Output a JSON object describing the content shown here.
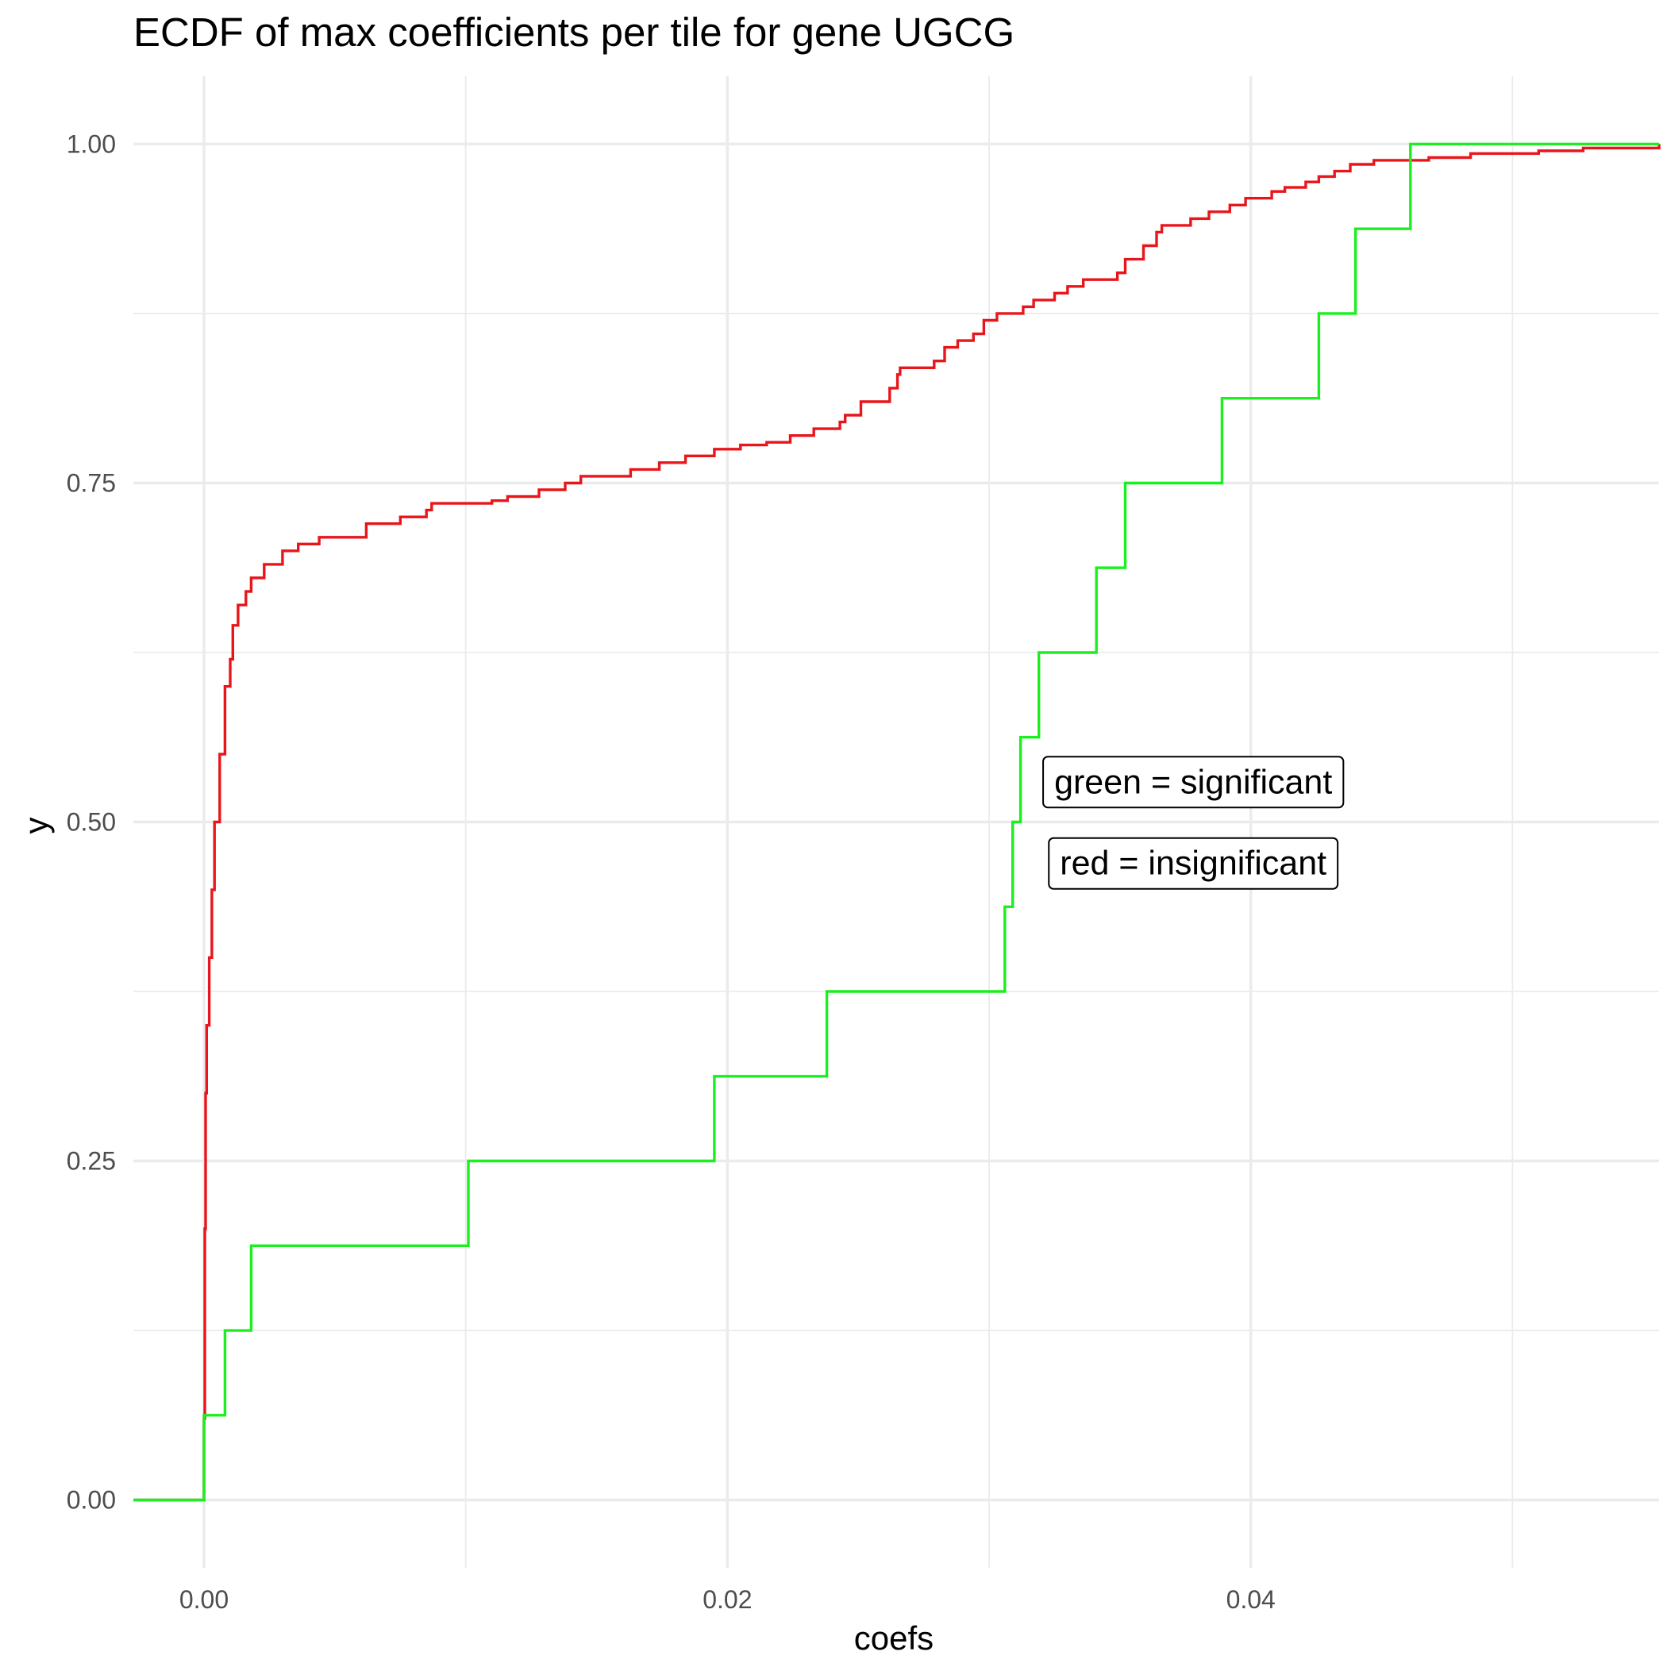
{
  "chart_data": {
    "type": "line",
    "title": "ECDF of max coefficients per tile for gene UGCG",
    "xlabel": "coefs",
    "ylabel": "y",
    "xlim": [
      -0.0027,
      0.0556
    ],
    "ylim": [
      -0.05,
      1.05
    ],
    "x_ticks": [
      {
        "value": 0.0,
        "label": "0.00"
      },
      {
        "value": 0.02,
        "label": "0.02"
      },
      {
        "value": 0.04,
        "label": "0.04"
      }
    ],
    "y_ticks": [
      {
        "value": 0.0,
        "label": "0.00"
      },
      {
        "value": 0.25,
        "label": "0.25"
      },
      {
        "value": 0.5,
        "label": "0.50"
      },
      {
        "value": 0.75,
        "label": "0.75"
      },
      {
        "value": 1.0,
        "label": "1.00"
      }
    ],
    "grid": true,
    "series": [
      {
        "key": "red",
        "color": "#e8161b",
        "step": true,
        "points": [
          [
            -0.0027,
            0.0
          ],
          [
            0.0,
            0.0
          ],
          [
            0.0,
            0.06
          ],
          [
            3e-05,
            0.2
          ],
          [
            6e-05,
            0.3
          ],
          [
            0.0001,
            0.35
          ],
          [
            0.0002,
            0.4
          ],
          [
            0.0003,
            0.45
          ],
          [
            0.0004,
            0.5
          ],
          [
            0.0006,
            0.55
          ],
          [
            0.0008,
            0.6
          ],
          [
            0.001,
            0.62
          ],
          [
            0.0011,
            0.645
          ],
          [
            0.0013,
            0.66
          ],
          [
            0.0016,
            0.67
          ],
          [
            0.0018,
            0.68
          ],
          [
            0.0023,
            0.69
          ],
          [
            0.003,
            0.7
          ],
          [
            0.0036,
            0.705
          ],
          [
            0.0044,
            0.71
          ],
          [
            0.0062,
            0.72
          ],
          [
            0.0075,
            0.725
          ],
          [
            0.0085,
            0.73
          ],
          [
            0.0087,
            0.735
          ],
          [
            0.011,
            0.737
          ],
          [
            0.0116,
            0.74
          ],
          [
            0.0128,
            0.745
          ],
          [
            0.0138,
            0.75
          ],
          [
            0.0144,
            0.755
          ],
          [
            0.0163,
            0.76
          ],
          [
            0.0174,
            0.765
          ],
          [
            0.0184,
            0.77
          ],
          [
            0.0195,
            0.775
          ],
          [
            0.0205,
            0.778
          ],
          [
            0.0215,
            0.78
          ],
          [
            0.0224,
            0.785
          ],
          [
            0.0233,
            0.79
          ],
          [
            0.0243,
            0.795
          ],
          [
            0.0245,
            0.8
          ],
          [
            0.0251,
            0.81
          ],
          [
            0.0262,
            0.82
          ],
          [
            0.0265,
            0.83
          ],
          [
            0.0266,
            0.835
          ],
          [
            0.0279,
            0.84
          ],
          [
            0.0283,
            0.85
          ],
          [
            0.0288,
            0.855
          ],
          [
            0.0294,
            0.86
          ],
          [
            0.0298,
            0.87
          ],
          [
            0.0303,
            0.875
          ],
          [
            0.0313,
            0.88
          ],
          [
            0.0317,
            0.885
          ],
          [
            0.0325,
            0.89
          ],
          [
            0.033,
            0.895
          ],
          [
            0.0336,
            0.9
          ],
          [
            0.0349,
            0.905
          ],
          [
            0.0352,
            0.915
          ],
          [
            0.0359,
            0.925
          ],
          [
            0.0364,
            0.935
          ],
          [
            0.0366,
            0.94
          ],
          [
            0.0377,
            0.945
          ],
          [
            0.0384,
            0.95
          ],
          [
            0.0392,
            0.955
          ],
          [
            0.0398,
            0.96
          ],
          [
            0.0408,
            0.965
          ],
          [
            0.0413,
            0.968
          ],
          [
            0.0421,
            0.972
          ],
          [
            0.0426,
            0.976
          ],
          [
            0.0432,
            0.98
          ],
          [
            0.0438,
            0.985
          ],
          [
            0.0447,
            0.988
          ],
          [
            0.0468,
            0.99
          ],
          [
            0.0484,
            0.993
          ],
          [
            0.051,
            0.995
          ],
          [
            0.0527,
            0.997
          ],
          [
            0.0556,
            1.0
          ]
        ]
      },
      {
        "key": "green",
        "color": "#19f01d",
        "step": true,
        "points": [
          [
            -0.0027,
            0.0
          ],
          [
            0.0,
            0.0
          ],
          [
            0.0,
            0.0625
          ],
          [
            0.0008,
            0.125
          ],
          [
            0.0018,
            0.1875
          ],
          [
            0.0101,
            0.25
          ],
          [
            0.0195,
            0.3125
          ],
          [
            0.0238,
            0.375
          ],
          [
            0.0306,
            0.4375
          ],
          [
            0.0309,
            0.5
          ],
          [
            0.0312,
            0.5625
          ],
          [
            0.0319,
            0.625
          ],
          [
            0.0341,
            0.6875
          ],
          [
            0.0352,
            0.75
          ],
          [
            0.0389,
            0.8125
          ],
          [
            0.0426,
            0.875
          ],
          [
            0.044,
            0.9375
          ],
          [
            0.0461,
            1.0
          ],
          [
            0.0556,
            1.0
          ]
        ]
      }
    ],
    "annotations": [
      {
        "text": "green = significant",
        "x": 0.0378,
        "y": 0.53
      },
      {
        "text": "red = insignificant",
        "x": 0.0378,
        "y": 0.47
      }
    ]
  }
}
